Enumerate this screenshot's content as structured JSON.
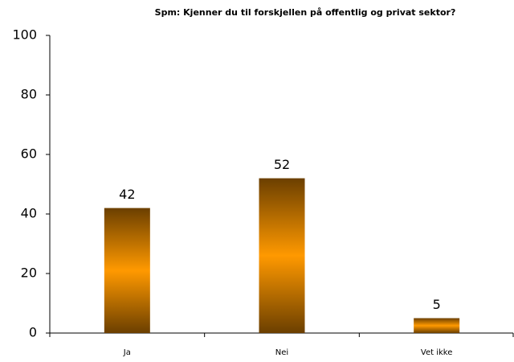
{
  "chart_data": {
    "type": "bar",
    "title": "Spm: Kjenner du til forskjellen på offentlig og privat sektor?",
    "categories": [
      "Ja",
      "Nei",
      "Vet ikke"
    ],
    "values": [
      42,
      52,
      5
    ],
    "color": "#ff9900",
    "edge_color": "#6b3f00",
    "ylim": [
      0,
      100
    ],
    "yticks": [
      0,
      20,
      40,
      60,
      80,
      100
    ],
    "grid": false,
    "data_labels": true
  }
}
